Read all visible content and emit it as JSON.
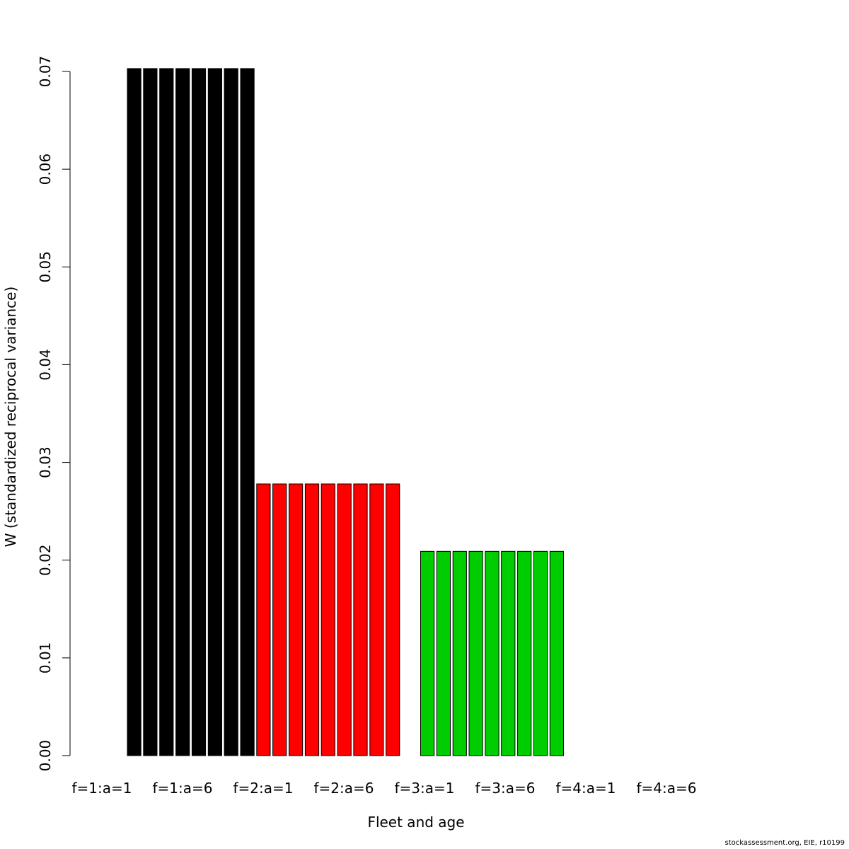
{
  "chart_data": {
    "type": "bar",
    "xlabel": "Fleet and age",
    "ylabel": "W (standardized reciprocal variance)",
    "ylim": [
      0,
      0.07
    ],
    "yticks": [
      "0.00",
      "0.01",
      "0.02",
      "0.03",
      "0.04",
      "0.05",
      "0.06",
      "0.07"
    ],
    "xtick_labels": [
      "f=1:a=1",
      "f=1:a=6",
      "f=2:a=1",
      "f=2:a=6",
      "f=3:a=1",
      "f=3:a=6",
      "f=4:a=1",
      "f=4:a=6"
    ],
    "grid": false,
    "series": [
      {
        "fleet": 1,
        "color": "#000000",
        "values": [
          0.0703,
          0.0703,
          0.0703,
          0.0703,
          0.0703,
          0.0703,
          0.0703,
          0.0703
        ]
      },
      {
        "fleet": 2,
        "color": "#ff0000",
        "values": [
          0.0278,
          0.0278,
          0.0278,
          0.0278,
          0.0278,
          0.0278,
          0.0278,
          0.0278,
          0.0278
        ]
      },
      {
        "fleet": 3,
        "color": "#00cd00",
        "values": [
          0.0209,
          0.0209,
          0.0209,
          0.0209,
          0.0209,
          0.0209,
          0.0209,
          0.0209,
          0.0209
        ]
      }
    ]
  },
  "footer": {
    "credit": "stockassessment.org, EIE, r10199"
  }
}
